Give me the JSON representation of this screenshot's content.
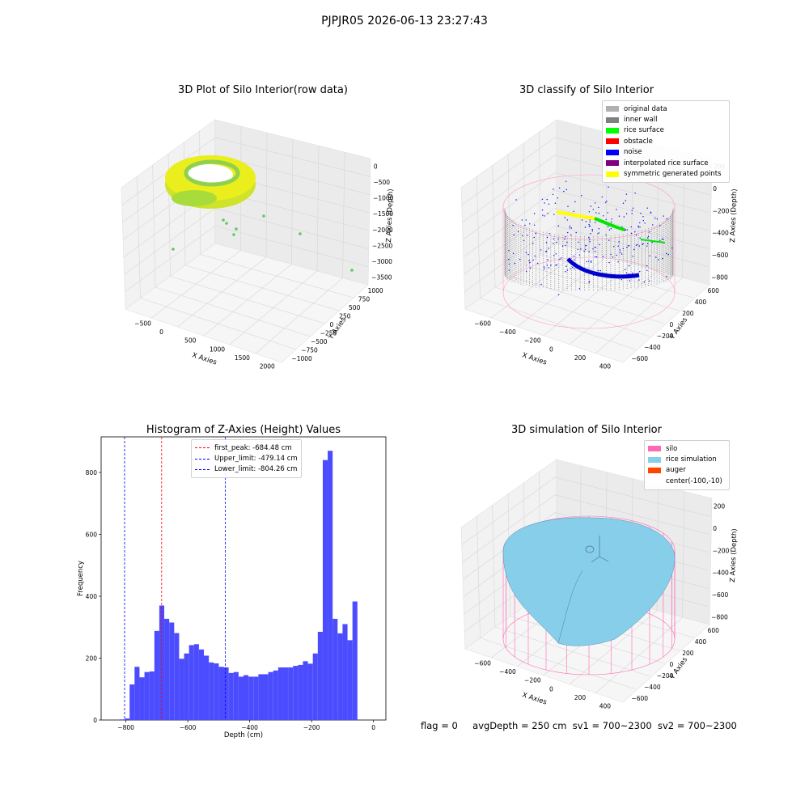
{
  "supertitle": "PJPJR05 2026-06-13 23:27:43",
  "footer": {
    "flag": "flag = 0",
    "avg_depth": "avgDepth = 250 cm",
    "sv1": "sv1 = 700~2300",
    "sv2": "sv2 = 700~2300"
  },
  "colors": {
    "histogram_bar": "#4c4cff",
    "first_peak_line": "#ff0000",
    "limit_lines": "#0000ff",
    "original_data": "#b0b0b0",
    "inner_wall": "#808080",
    "rice_surface": "#00ff00",
    "obstacle": "#ff0000",
    "noise": "#0000ff",
    "interpolated": "#800080",
    "symmetric": "#ffff00",
    "silo": "#ff69b4",
    "rice_simulation": "#87ceeb",
    "auger": "#ff4500"
  },
  "chart_data": [
    {
      "type": "scatter",
      "title": "3D Plot of Silo Interior(row data)",
      "xlabel": "X Axies",
      "ylabel": "Y Axies",
      "zlabel": "Z Axies (Depth)",
      "x_ticks": [
        "−500",
        "0",
        "500",
        "1000",
        "1500",
        "2000"
      ],
      "y_ticks": [
        "1000",
        "750",
        "500",
        "250",
        "0",
        "−250",
        "−500",
        "−750",
        "−1000"
      ],
      "z_ticks": [
        "0",
        "−500",
        "−1000",
        "−1500",
        "−2000",
        "−2500",
        "−3000",
        "−3500"
      ]
    },
    {
      "type": "scatter",
      "title": "3D classify of Silo Interior",
      "xlabel": "X Axies",
      "ylabel": "Y Axies",
      "zlabel": "Z Axies (Depth)",
      "x_ticks": [
        "−600",
        "−400",
        "−200",
        "0",
        "200",
        "400"
      ],
      "y_ticks": [
        "600",
        "400",
        "200",
        "0",
        "−200",
        "−400",
        "−600"
      ],
      "z_ticks": [
        "200",
        "0",
        "−200",
        "−400",
        "−600",
        "−800"
      ],
      "legend": [
        {
          "label": "original data",
          "color": "#b0b0b0"
        },
        {
          "label": "inner wall",
          "color": "#808080"
        },
        {
          "label": "rice surface",
          "color": "#00ff00"
        },
        {
          "label": "obstacle",
          "color": "#ff0000"
        },
        {
          "label": "noise",
          "color": "#0000ff"
        },
        {
          "label": "interpolated rice surface",
          "color": "#800080"
        },
        {
          "label": "symmetric generated points",
          "color": "#ffff00"
        }
      ]
    },
    {
      "type": "bar",
      "title": "Histogram of Z-Axies (Height) Values",
      "xlabel": "Depth (cm)",
      "ylabel": "Frequency",
      "xlim": [
        -880,
        40
      ],
      "ylim": [
        0,
        915
      ],
      "x_ticks": [
        {
          "v": -800,
          "label": "−800"
        },
        {
          "v": -600,
          "label": "−600"
        },
        {
          "v": -400,
          "label": "−400"
        },
        {
          "v": -200,
          "label": "−200"
        },
        {
          "v": 0,
          "label": "0"
        }
      ],
      "y_ticks": [
        0,
        200,
        400,
        600,
        800
      ],
      "bin_start": -820,
      "bin_width": 16,
      "values": [
        2,
        5,
        115,
        172,
        138,
        155,
        157,
        288,
        370,
        327,
        315,
        281,
        198,
        215,
        242,
        245,
        228,
        208,
        186,
        183,
        172,
        170,
        152,
        155,
        140,
        145,
        140,
        140,
        148,
        148,
        155,
        160,
        170,
        170,
        170,
        175,
        178,
        190,
        182,
        215,
        285,
        840,
        870,
        327,
        280,
        310,
        258,
        383
      ],
      "lines": [
        {
          "label": "first_peak: -684.48 cm",
          "x": -684.48,
          "color": "#ff0000"
        },
        {
          "label": "Upper_limit: -479.14 cm",
          "x": -479.14,
          "color": "#0000ff"
        },
        {
          "label": "Lower_limit: -804.26 cm",
          "x": -804.26,
          "color": "#0000ff"
        }
      ]
    },
    {
      "type": "surface",
      "title": "3D simulation of Silo Interior",
      "xlabel": "X Axies",
      "ylabel": "Y Axies",
      "zlabel": "Z Axies (Depth)",
      "x_ticks": [
        "−600",
        "−400",
        "−200",
        "0",
        "200",
        "400"
      ],
      "y_ticks": [
        "600",
        "400",
        "200",
        "0",
        "−200",
        "−400",
        "−600"
      ],
      "z_ticks": [
        "200",
        "0",
        "−200",
        "−400",
        "−600",
        "−800"
      ],
      "legend": [
        {
          "label": "silo",
          "color": "#ff69b4"
        },
        {
          "label": "rice simulation",
          "color": "#87ceeb"
        },
        {
          "label": "auger",
          "color": "#ff4500"
        },
        {
          "label": "center(-100,-10)",
          "color": ""
        }
      ]
    }
  ]
}
